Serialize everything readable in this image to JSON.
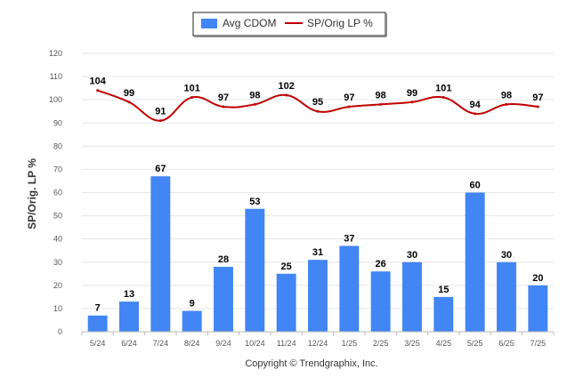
{
  "chart_data": {
    "type": "bar",
    "categories": [
      "5/24",
      "6/24",
      "7/24",
      "8/24",
      "9/24",
      "10/24",
      "11/24",
      "12/24",
      "1/25",
      "2/25",
      "3/25",
      "4/25",
      "5/25",
      "6/25",
      "7/25"
    ],
    "series": [
      {
        "name": "Avg CDOM",
        "type": "bar",
        "color": "#4285f4",
        "values": [
          7,
          13,
          67,
          9,
          28,
          53,
          25,
          31,
          37,
          26,
          30,
          15,
          60,
          30,
          20
        ]
      },
      {
        "name": "SP/Orig LP %",
        "type": "line",
        "color": "#c00000",
        "values": [
          104,
          99,
          91,
          101,
          97,
          98,
          102,
          95,
          97,
          98,
          99,
          101,
          94,
          98,
          97
        ]
      }
    ],
    "ylabel": "SP/Orig. LP %",
    "ylim": [
      0,
      120
    ],
    "yticks": [
      0,
      10,
      20,
      30,
      40,
      50,
      60,
      70,
      80,
      90,
      100,
      110,
      120
    ],
    "grid": true,
    "legend": "top-center"
  },
  "legend": {
    "bar_label": "Avg CDOM",
    "line_label": "SP/Orig LP %"
  },
  "footer": {
    "copyright": "Copyright © Trendgraphix, Inc."
  }
}
